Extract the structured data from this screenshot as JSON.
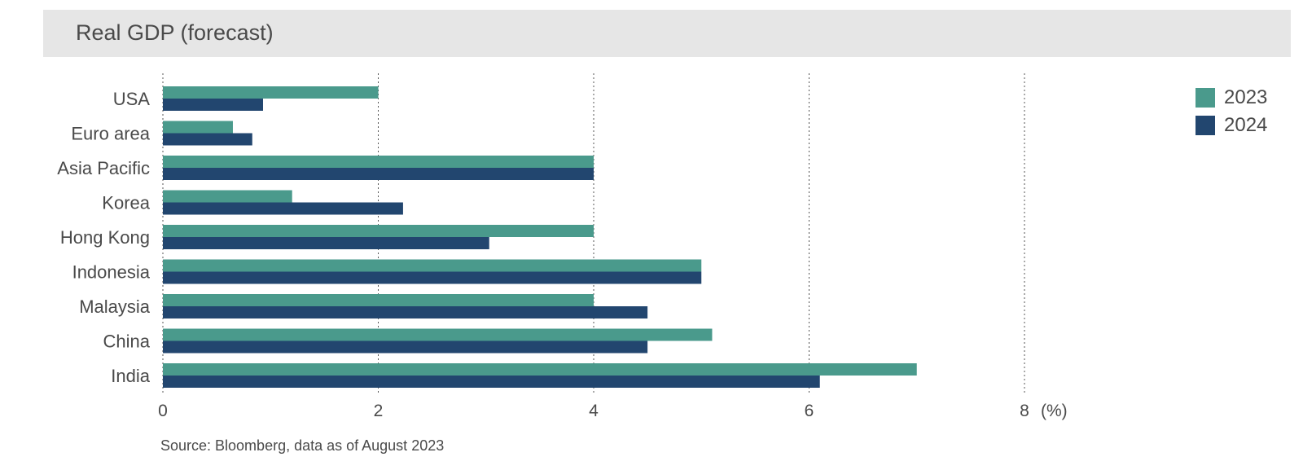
{
  "header": {
    "title": "Real GDP (forecast)"
  },
  "footer": {
    "source": "Source: Bloomberg, data as of August 2023"
  },
  "colors": {
    "2023": "#4a9a8c",
    "2024": "#22466f"
  },
  "chart_data": {
    "type": "bar",
    "orientation": "horizontal",
    "title": "Real GDP (forecast)",
    "unit_label": "(%)",
    "categories": [
      "USA",
      "Euro area",
      "Asia Pacific",
      "Korea",
      "Hong Kong",
      "Indonesia",
      "Malaysia",
      "China",
      "India"
    ],
    "series": [
      {
        "name": "2023",
        "values": [
          2.0,
          0.65,
          4.0,
          1.2,
          4.0,
          5.0,
          4.0,
          5.1,
          7.0
        ]
      },
      {
        "name": "2024",
        "values": [
          0.93,
          0.83,
          4.0,
          2.23,
          3.03,
          5.0,
          4.5,
          4.5,
          6.1
        ]
      }
    ],
    "xlim": [
      0,
      8
    ],
    "xticks": [
      "0",
      "2",
      "4",
      "6",
      "8"
    ],
    "grid": "vertical dotted",
    "legend": "top-right"
  }
}
